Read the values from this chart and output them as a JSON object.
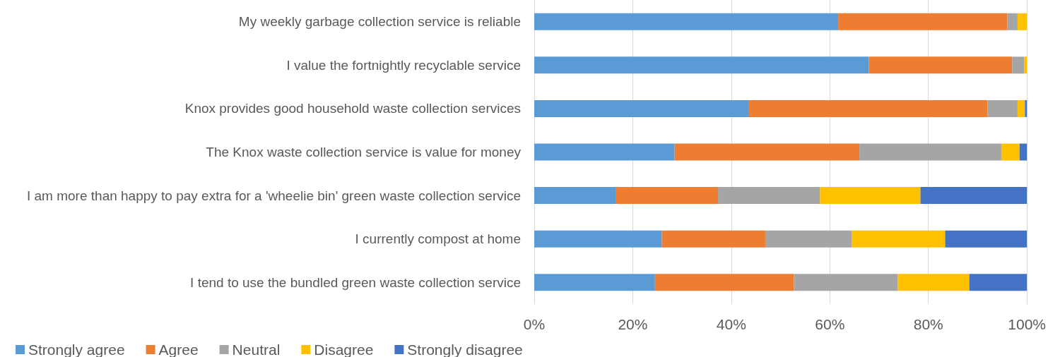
{
  "chart_data": {
    "type": "bar",
    "orientation": "horizontal",
    "stacked": true,
    "categories": [
      "My weekly garbage collection service is reliable",
      "I value the fortnightly recyclable service",
      "Knox provides good household waste collection services",
      "The Knox waste collection service is value for money",
      "I am more than happy to pay extra for a 'wheelie bin' green waste collection service",
      "I currently compost at home",
      "I tend to use the bundled green waste collection service"
    ],
    "series": [
      {
        "name": "Strongly agree",
        "color": "#5b9bd5",
        "values": [
          61.7,
          67.9,
          43.6,
          28.5,
          16.5,
          25.9,
          24.5
        ]
      },
      {
        "name": "Agree",
        "color": "#ed7d31",
        "values": [
          34.3,
          29.1,
          48.4,
          37.5,
          20.8,
          21.0,
          28.2
        ]
      },
      {
        "name": "Neutral",
        "color": "#a5a5a5",
        "values": [
          2.1,
          2.4,
          6.1,
          28.8,
          20.7,
          17.6,
          21.1
        ]
      },
      {
        "name": "Disagree",
        "color": "#ffc000",
        "values": [
          1.9,
          0.6,
          1.5,
          3.7,
          20.4,
          18.9,
          14.5
        ]
      },
      {
        "name": "Strongly disagree",
        "color": "#4472c4",
        "values": [
          0,
          0,
          0.4,
          1.5,
          21.6,
          16.6,
          11.7
        ]
      }
    ],
    "xlim": [
      0,
      100
    ],
    "xticks": [
      {
        "value": 0,
        "label": "0%"
      },
      {
        "value": 20,
        "label": "20%"
      },
      {
        "value": 40,
        "label": "40%"
      },
      {
        "value": 60,
        "label": "60%"
      },
      {
        "value": 80,
        "label": "80%"
      },
      {
        "value": 100,
        "label": "100%"
      }
    ],
    "grid": "x",
    "legend": "bottom left"
  }
}
